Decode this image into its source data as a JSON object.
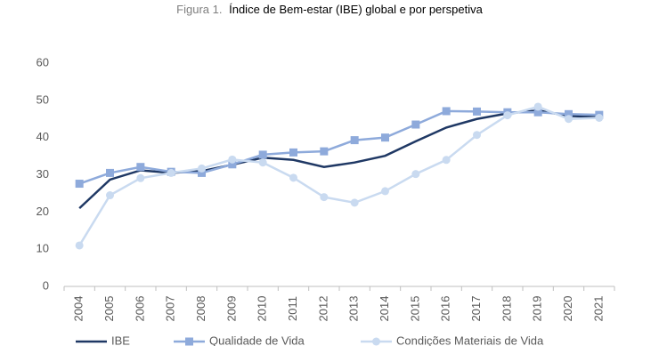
{
  "chart_data": {
    "type": "line",
    "figure_label": "Figura 1.",
    "title": "Índice de Bem-estar (IBE) global e por perspetiva",
    "categories": [
      "2004",
      "2005",
      "2006",
      "2007",
      "2008",
      "2009",
      "2010",
      "2011",
      "2012",
      "2013",
      "2014",
      "2015",
      "2016",
      "2017",
      "2018",
      "2019",
      "2020",
      "2021"
    ],
    "series": [
      {
        "name": "IBE",
        "color": "#1f3864",
        "marker": "none",
        "values": [
          21,
          28.7,
          31.2,
          30.5,
          31,
          32.7,
          34.6,
          34,
          32.1,
          33.3,
          35.1,
          39,
          42.7,
          45,
          46.5,
          47.3,
          45.8,
          45.5
        ]
      },
      {
        "name": "Qualidade de Vida",
        "color": "#8eaadb",
        "marker": "square",
        "values": [
          27.6,
          30.5,
          32.1,
          30.8,
          30.5,
          32.8,
          35.4,
          36,
          36.3,
          39.3,
          40,
          43.5,
          47.1,
          47,
          46.8,
          46.8,
          46.3,
          46.1
        ]
      },
      {
        "name": "Condições Materiais de Vida",
        "color": "#c9daf0",
        "marker": "circle",
        "values": [
          11,
          24.5,
          29.1,
          30.5,
          31.7,
          34.1,
          33.3,
          29.2,
          24,
          22.5,
          25.6,
          30.2,
          34,
          40.7,
          46,
          48.3,
          45,
          45.3
        ]
      }
    ],
    "ylim": [
      0,
      60
    ],
    "yticks": [
      0,
      10,
      20,
      30,
      40,
      50,
      60
    ],
    "grid": false
  }
}
